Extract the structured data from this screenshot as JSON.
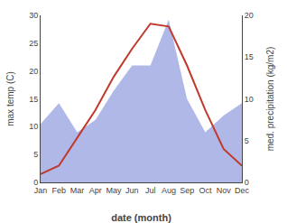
{
  "chart_data": {
    "type": "line",
    "xlabel": "date (month)",
    "ylabel": "max temp (C)",
    "y2label": "med. precipitation (kg/m2)",
    "categories": [
      "Jan",
      "Feb",
      "Mar",
      "Apr",
      "May",
      "Jun",
      "Jul",
      "Aug",
      "Sep",
      "Oct",
      "Nov",
      "Dec"
    ],
    "series": [
      {
        "type": "line",
        "color": "#c0392b",
        "values": [
          1.5,
          3.0,
          8.0,
          13.0,
          19.0,
          24.0,
          28.5,
          28.0,
          21.0,
          13.0,
          6.0,
          3.0
        ]
      },
      {
        "type": "area",
        "color": "#b0b8e8",
        "axis": "y2",
        "values": [
          7.0,
          9.5,
          6.0,
          7.5,
          11.0,
          14.0,
          14.0,
          19.5,
          10.0,
          6.0,
          8.0,
          9.5
        ]
      }
    ],
    "ylim": [
      0,
      30
    ],
    "yticks": [
      0,
      5,
      10,
      15,
      20,
      25,
      30
    ],
    "y2lim": [
      0,
      20
    ],
    "y2ticks": [
      0,
      5,
      10,
      15,
      20
    ],
    "grid": false
  }
}
